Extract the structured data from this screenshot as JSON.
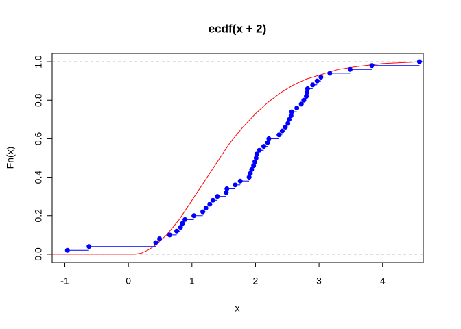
{
  "chart_data": {
    "type": "ecdf",
    "title": "ecdf(x + 2)",
    "x_label": "x",
    "y_label": "Fn(x)",
    "x": [
      -0.96,
      -0.62,
      0.43,
      0.49,
      0.65,
      0.76,
      0.82,
      0.85,
      0.89,
      1.03,
      1.17,
      1.22,
      1.28,
      1.33,
      1.4,
      1.54,
      1.55,
      1.68,
      1.76,
      1.9,
      1.92,
      1.94,
      1.97,
      1.99,
      2.01,
      2.02,
      2.06,
      2.13,
      2.19,
      2.21,
      2.37,
      2.42,
      2.47,
      2.51,
      2.53,
      2.56,
      2.57,
      2.65,
      2.72,
      2.76,
      2.8,
      2.81,
      2.82,
      2.9,
      2.97,
      3.03,
      3.17,
      3.49,
      3.83,
      4.58
    ],
    "values": [
      0.02,
      0.04,
      0.06,
      0.08,
      0.1,
      0.12,
      0.14,
      0.16,
      0.18,
      0.2,
      0.22,
      0.24,
      0.26,
      0.28,
      0.3,
      0.32,
      0.34,
      0.36,
      0.38,
      0.4,
      0.42,
      0.44,
      0.46,
      0.48,
      0.5,
      0.52,
      0.54,
      0.56,
      0.58,
      0.6,
      0.62,
      0.64,
      0.66,
      0.68,
      0.7,
      0.72,
      0.74,
      0.76,
      0.78,
      0.8,
      0.82,
      0.84,
      0.86,
      0.88,
      0.9,
      0.92,
      0.94,
      0.96,
      0.98,
      1.0
    ],
    "color": "#0000ff",
    "curve": {
      "x": [
        -1.2,
        0,
        0.1,
        0.2,
        0.3,
        0.4,
        0.5,
        0.6,
        0.7,
        0.8,
        0.9,
        1.0,
        1.2,
        1.4,
        1.6,
        1.8,
        2.0,
        2.2,
        2.4,
        2.6,
        2.8,
        3.0,
        3.3,
        3.6,
        4.0,
        4.6
      ],
      "values": [
        0,
        0,
        0,
        0.005,
        0.02,
        0.04,
        0.07,
        0.1,
        0.14,
        0.18,
        0.23,
        0.28,
        0.38,
        0.48,
        0.58,
        0.66,
        0.73,
        0.79,
        0.84,
        0.88,
        0.91,
        0.93,
        0.96,
        0.975,
        0.99,
        1.0
      ],
      "color": "#ff0000"
    },
    "hlines": [
      0,
      1
    ],
    "xlim": [
      -1.2,
      4.64
    ],
    "ylim": [
      -0.043,
      1.043
    ],
    "xticks": [
      -1,
      0,
      1,
      2,
      3,
      4
    ],
    "yticks": [
      {
        "value": 0,
        "label": "0.0"
      },
      0.2,
      0.4,
      0.6,
      0.8,
      {
        "value": 1,
        "label": "1.0"
      }
    ]
  }
}
